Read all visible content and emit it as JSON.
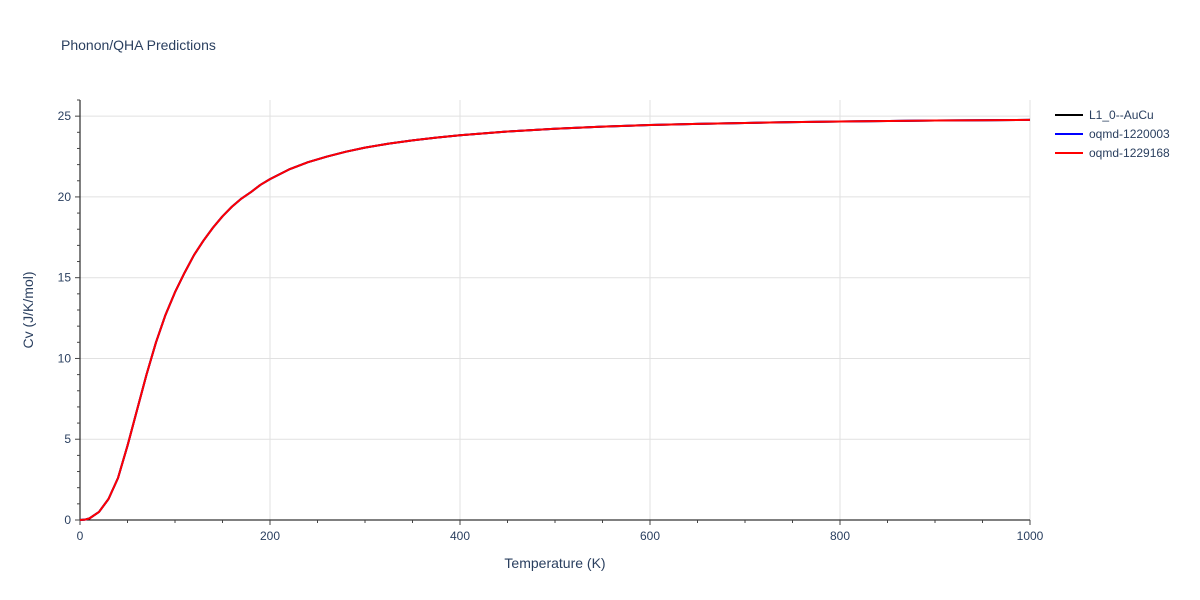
{
  "chart_data": {
    "type": "line",
    "title": "Phonon/QHA Predictions",
    "xlabel": "Temperature (K)",
    "ylabel": "Cv (J/K/mol)",
    "xlim": [
      0,
      1000
    ],
    "ylim": [
      0,
      26
    ],
    "xticks": [
      0,
      200,
      400,
      600,
      800,
      1000
    ],
    "yticks": [
      0,
      5,
      10,
      15,
      20,
      25
    ],
    "grid": true,
    "legend_position": "top-right",
    "series": [
      {
        "name": "L1_0--AuCu",
        "color": "#000000",
        "x": [
          0,
          5,
          10,
          20,
          30,
          40,
          50,
          60,
          70,
          80,
          90,
          100,
          110,
          120,
          130,
          140,
          150,
          160,
          170,
          180,
          190,
          200,
          220,
          240,
          260,
          280,
          300,
          325,
          350,
          375,
          400,
          450,
          500,
          550,
          600,
          650,
          700,
          750,
          800,
          850,
          900,
          950,
          1000
        ],
        "y": [
          0,
          0.02,
          0.1,
          0.5,
          1.3,
          2.6,
          4.6,
          6.8,
          9.0,
          11.0,
          12.7,
          14.1,
          15.3,
          16.4,
          17.3,
          18.1,
          18.8,
          19.4,
          19.9,
          20.3,
          20.75,
          21.1,
          21.7,
          22.15,
          22.5,
          22.8,
          23.05,
          23.3,
          23.5,
          23.67,
          23.82,
          24.05,
          24.22,
          24.35,
          24.45,
          24.52,
          24.58,
          24.63,
          24.67,
          24.7,
          24.73,
          24.75,
          24.77
        ]
      },
      {
        "name": "oqmd-1220003",
        "color": "#0000ff",
        "x": [
          0,
          5,
          10,
          20,
          30,
          40,
          50,
          60,
          70,
          80,
          90,
          100,
          110,
          120,
          130,
          140,
          150,
          160,
          170,
          180,
          190,
          200,
          220,
          240,
          260,
          280,
          300,
          325,
          350,
          375,
          400,
          450,
          500,
          550,
          600,
          650,
          700,
          750,
          800,
          850,
          900,
          950,
          1000
        ],
        "y": [
          0,
          0.02,
          0.1,
          0.5,
          1.3,
          2.6,
          4.6,
          6.8,
          9.0,
          11.0,
          12.7,
          14.1,
          15.3,
          16.4,
          17.3,
          18.1,
          18.8,
          19.4,
          19.9,
          20.3,
          20.75,
          21.1,
          21.7,
          22.15,
          22.5,
          22.8,
          23.05,
          23.3,
          23.5,
          23.67,
          23.82,
          24.05,
          24.22,
          24.35,
          24.45,
          24.52,
          24.58,
          24.63,
          24.67,
          24.7,
          24.73,
          24.75,
          24.77
        ]
      },
      {
        "name": "oqmd-1229168",
        "color": "#ff0000",
        "x": [
          0,
          5,
          10,
          20,
          30,
          40,
          50,
          60,
          70,
          80,
          90,
          100,
          110,
          120,
          130,
          140,
          150,
          160,
          170,
          180,
          190,
          200,
          220,
          240,
          260,
          280,
          300,
          325,
          350,
          375,
          400,
          450,
          500,
          550,
          600,
          650,
          700,
          750,
          800,
          850,
          900,
          950,
          1000
        ],
        "y": [
          0,
          0.02,
          0.1,
          0.5,
          1.3,
          2.6,
          4.6,
          6.8,
          9.0,
          11.0,
          12.7,
          14.1,
          15.3,
          16.4,
          17.3,
          18.1,
          18.8,
          19.4,
          19.9,
          20.3,
          20.75,
          21.1,
          21.7,
          22.15,
          22.5,
          22.8,
          23.05,
          23.3,
          23.5,
          23.67,
          23.82,
          24.05,
          24.22,
          24.35,
          24.45,
          24.52,
          24.58,
          24.63,
          24.67,
          24.7,
          24.73,
          24.75,
          24.77
        ]
      }
    ]
  }
}
